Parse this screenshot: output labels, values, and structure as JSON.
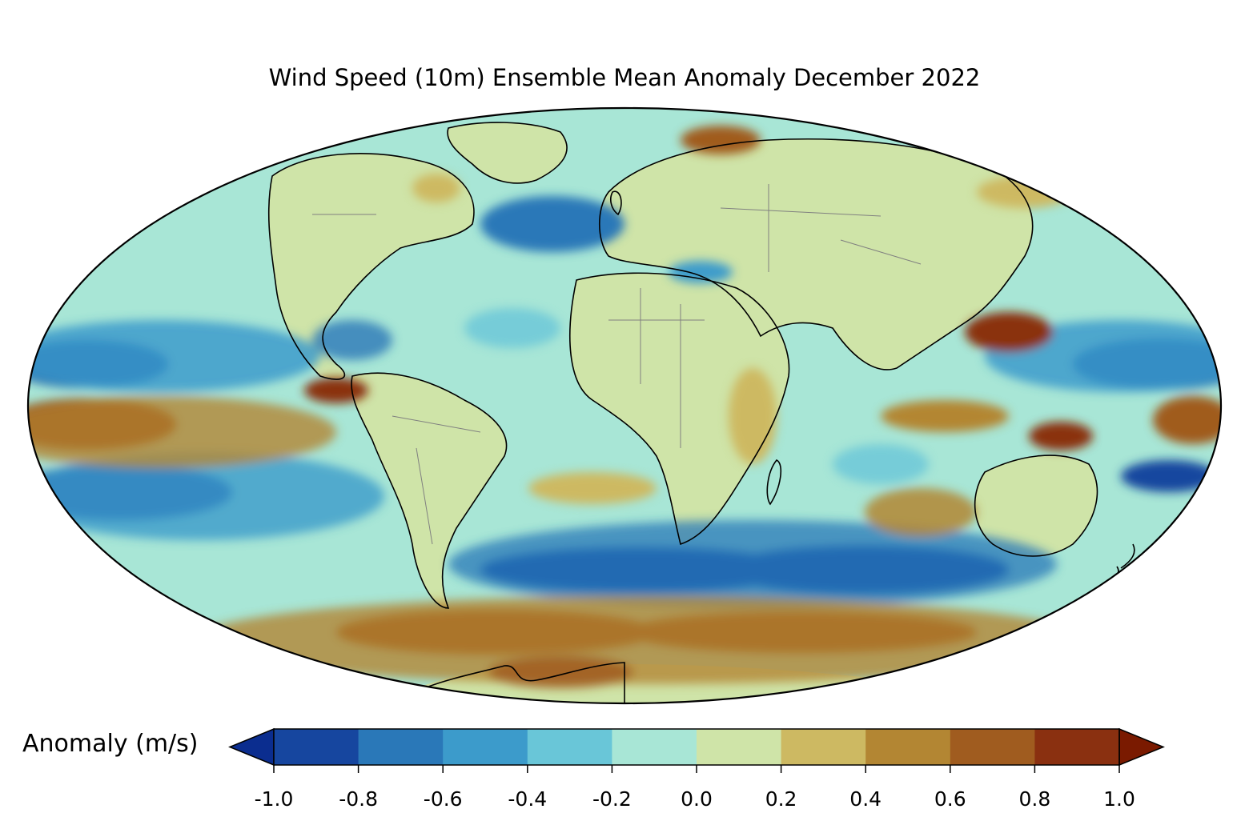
{
  "title": "Wind Speed (10m) Ensemble Mean Anomaly December 2022",
  "projection": "Mollweide",
  "colorbar": {
    "label": "Anomaly (m/s)",
    "orientation": "horizontal",
    "extend": "both",
    "ticks": [
      "-1.0",
      "-0.8",
      "-0.6",
      "-0.4",
      "-0.2",
      "0.0",
      "0.2",
      "0.4",
      "0.6",
      "0.8",
      "1.0"
    ],
    "colors": [
      "#16469f",
      "#2a78b8",
      "#3c9bcb",
      "#69c6d8",
      "#a8e6d6",
      "#cfe4a8",
      "#cdb962",
      "#b38633",
      "#a05c1f",
      "#8a3010"
    ],
    "under_color": "#0b2d8f",
    "over_color": "#7a1a00"
  },
  "palette": {
    "ocean_base": "#a8e6d6",
    "land_base": "#cfe4a8",
    "coastline": "#000000",
    "borders": "#808080"
  }
}
